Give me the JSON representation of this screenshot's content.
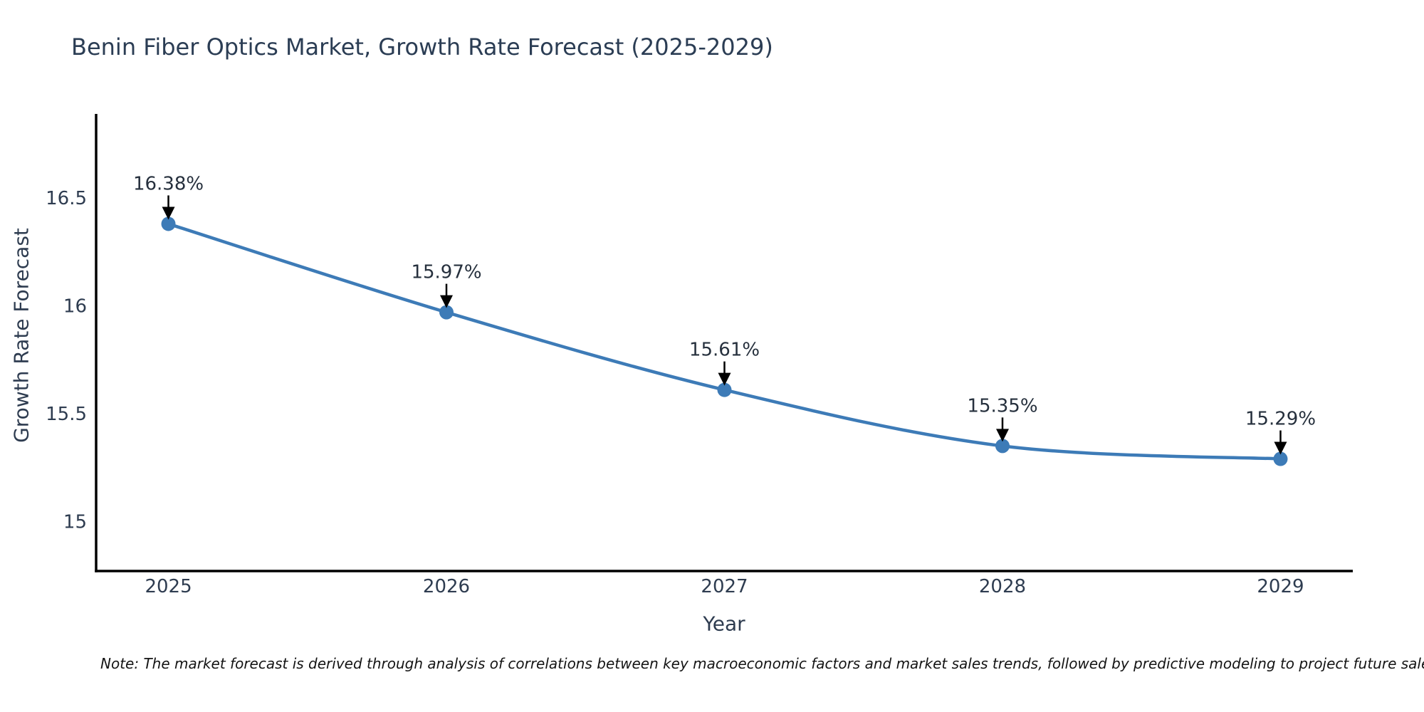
{
  "chart_data": {
    "type": "line",
    "title": "Benin Fiber Optics Market, Growth Rate Forecast (2025-2029)",
    "xlabel": "Year",
    "ylabel": "Growth Rate Forecast",
    "x": [
      2025,
      2026,
      2027,
      2028,
      2029
    ],
    "categories": [
      "2025",
      "2026",
      "2027",
      "2028",
      "2029"
    ],
    "series": [
      {
        "name": "Growth Rate Forecast",
        "values": [
          16.38,
          15.97,
          15.61,
          15.35,
          15.29
        ]
      }
    ],
    "point_labels": [
      "16.38%",
      "15.97%",
      "15.61%",
      "15.35%",
      "15.29%"
    ],
    "x_tick_labels": [
      "2025",
      "2026",
      "2027",
      "2028",
      "2029"
    ],
    "y_tick_values": [
      16.5,
      16,
      15.5,
      15
    ],
    "y_tick_labels": [
      "16.5",
      "16",
      "15.5",
      "15"
    ],
    "xlim": [
      2024.74,
      2029.26
    ],
    "ylim": [
      14.77,
      16.89
    ],
    "grid": false,
    "legend": false,
    "smooth": true
  },
  "footnote": {
    "text": "Note: The market forecast is derived through analysis of correlations between key macroeconomic factors and market sales trends, followed by predictive modeling to project future sales"
  },
  "colors": {
    "background": "#ffffff",
    "line": "#3d7bb7",
    "marker": "#3d7bb7",
    "axis": "#000000",
    "arrow": "#000000",
    "title_text": "#2b3d54",
    "tick_text": "#2e3c50",
    "annotation_text": "#26303d",
    "note_text": "#141414"
  }
}
